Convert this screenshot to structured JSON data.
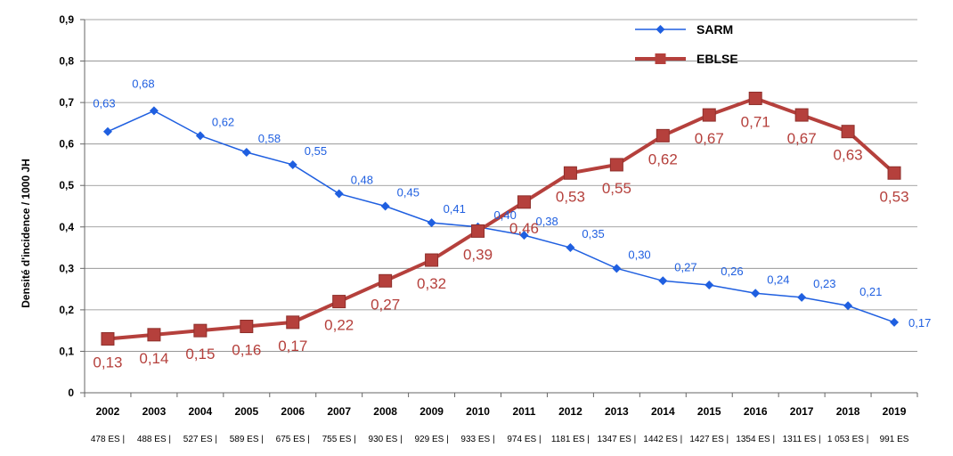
{
  "chart_data": {
    "type": "line",
    "ylabel": "Densité d'incidence  / 1000 JH",
    "ylim": [
      0,
      0.9
    ],
    "yticks": [
      "0",
      "0,1",
      "0,2",
      "0,3",
      "0,4",
      "0,5",
      "0,6",
      "0,7",
      "0,8",
      "0,9"
    ],
    "ytick_values": [
      0,
      0.1,
      0.2,
      0.3,
      0.4,
      0.5,
      0.6,
      0.7,
      0.8,
      0.9
    ],
    "categories": [
      "2002",
      "2003",
      "2004",
      "2005",
      "2006",
      "2007",
      "2008",
      "2009",
      "2010",
      "2011",
      "2012",
      "2013",
      "2014",
      "2015",
      "2016",
      "2017",
      "2018",
      "2019"
    ],
    "sublabels": [
      "478 ES |",
      "488 ES |",
      "527 ES |",
      "589 ES |",
      "675 ES |",
      "755 ES |",
      "930 ES |",
      "929 ES |",
      "933 ES |",
      "974 ES |",
      "1181 ES |",
      "1347 ES |",
      "1442 ES |",
      "1427 ES |",
      "1354 ES |",
      "1311 ES |",
      "1 053 ES |",
      "991 ES"
    ],
    "series": [
      {
        "name": "SARM",
        "color": "#1f5fe0",
        "marker": "diamond",
        "values": [
          0.63,
          0.68,
          0.62,
          0.58,
          0.55,
          0.48,
          0.45,
          0.41,
          0.4,
          0.38,
          0.35,
          0.3,
          0.27,
          0.26,
          0.24,
          0.23,
          0.21,
          0.17
        ],
        "labels": [
          "0,63",
          "0,68",
          "0,62",
          "0,58",
          "0,55",
          "0,48",
          "0,45",
          "0,41",
          "0,40",
          "0,38",
          "0,35",
          "0,30",
          "0,27",
          "0,26",
          "0,24",
          "0,23",
          "0,21",
          "0,17"
        ]
      },
      {
        "name": "EBLSE",
        "color": "#b5403c",
        "marker": "square",
        "values": [
          0.13,
          0.14,
          0.15,
          0.16,
          0.17,
          0.22,
          0.27,
          0.32,
          0.39,
          0.46,
          0.53,
          0.55,
          0.62,
          0.67,
          0.71,
          0.67,
          0.63,
          0.53
        ],
        "labels": [
          "0,13",
          "0,14",
          "0,15",
          "0,16",
          "0,17",
          "0,22",
          "0,27",
          "0,32",
          "0,39",
          "0,46",
          "0,53",
          "0,55",
          "0,62",
          "0,67",
          "0,71",
          "0,67",
          "0,63",
          "0,53"
        ]
      }
    ],
    "legend": [
      "SARM",
      "EBLSE"
    ],
    "legend_position": "top-right",
    "grid": true
  }
}
